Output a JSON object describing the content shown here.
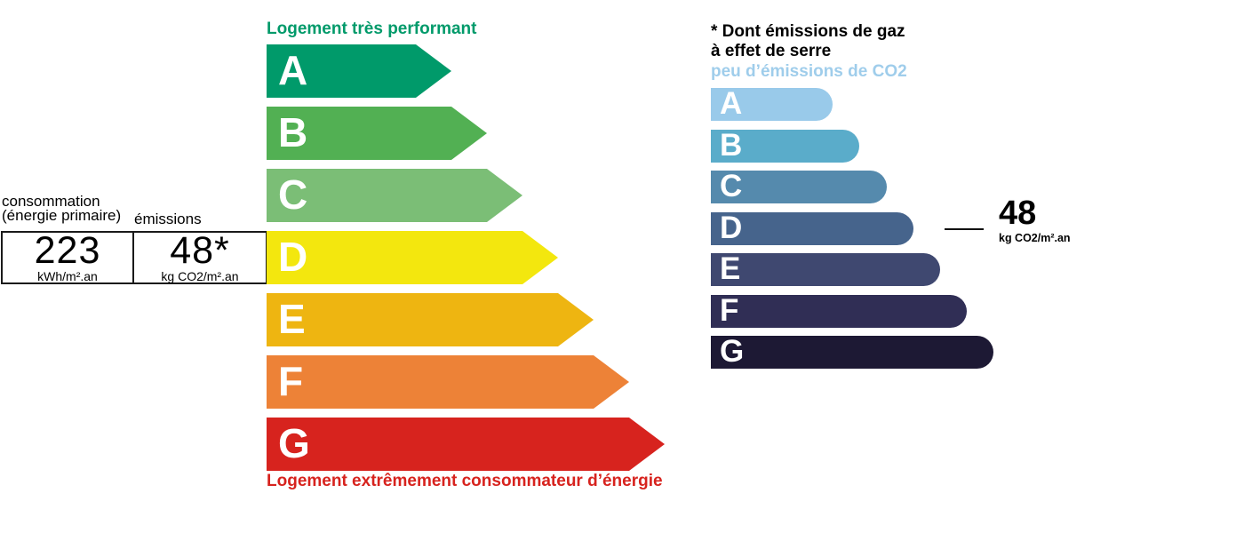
{
  "values_panel": {
    "consumption_label_line1": "consommation",
    "consumption_label_line2": "(énergie primaire)",
    "emissions_label": "émissions",
    "consumption": {
      "value": "223",
      "unit": "kWh/m².an"
    },
    "emissions": {
      "value": "48*",
      "unit": "kg CO2/m².an"
    }
  },
  "energy_scale": {
    "top_label": "Logement très performant",
    "bottom_label": "Logement extrêmement consommateur d’énergie"
  },
  "co2_scale": {
    "note_line1": "* Dont émissions de gaz",
    "note_line2": "à effet de serre",
    "subtitle": "peu d’émissions de CO2",
    "indicator": {
      "value": "48",
      "unit": "kg CO2/m².an"
    }
  },
  "palette": {
    "energy_label_green": "#009A6A",
    "warning_red": "#D7231E",
    "co2_subtitle_blue": "#9FCDEB",
    "text_black": "#000000"
  },
  "chart_data": [
    {
      "type": "bar",
      "title": "Échelle DPE consommation d'énergie",
      "orientation": "horizontal",
      "categories": [
        "A",
        "B",
        "C",
        "D",
        "E",
        "F",
        "G"
      ],
      "values": [
        208,
        248,
        288,
        328,
        368,
        408,
        448
      ],
      "values_meaning": "longueur relative des flèches (échelle ordinale, pas d'axe numérique)",
      "colors": [
        "#009A6A",
        "#52B053",
        "#7BBE76",
        "#F3E70E",
        "#EEB511",
        "#ED8237",
        "#D7231E"
      ],
      "annotations": [
        "Logement très performant",
        "Logement extrêmement consommateur d’énergie"
      ],
      "highlight": {
        "class": "D",
        "consommation": 223,
        "unit": "kWh/m².an"
      }
    },
    {
      "type": "bar",
      "title": "Échelle émissions de CO2",
      "orientation": "horizontal",
      "categories": [
        "A",
        "B",
        "C",
        "D",
        "E",
        "F",
        "G"
      ],
      "values": [
        137,
        167,
        198,
        228,
        258,
        288,
        318
      ],
      "values_meaning": "longueur relative des barres (échelle ordinale)",
      "colors": [
        "#99CAEA",
        "#5AACCA",
        "#558AAD",
        "#46648C",
        "#3F4870",
        "#302E55",
        "#1D1934"
      ],
      "annotations": [
        "* Dont émissions de gaz à effet de serre",
        "peu d’émissions de CO2"
      ],
      "highlight": {
        "class": "D",
        "value": 48,
        "unit": "kg CO2/m².an"
      }
    }
  ]
}
